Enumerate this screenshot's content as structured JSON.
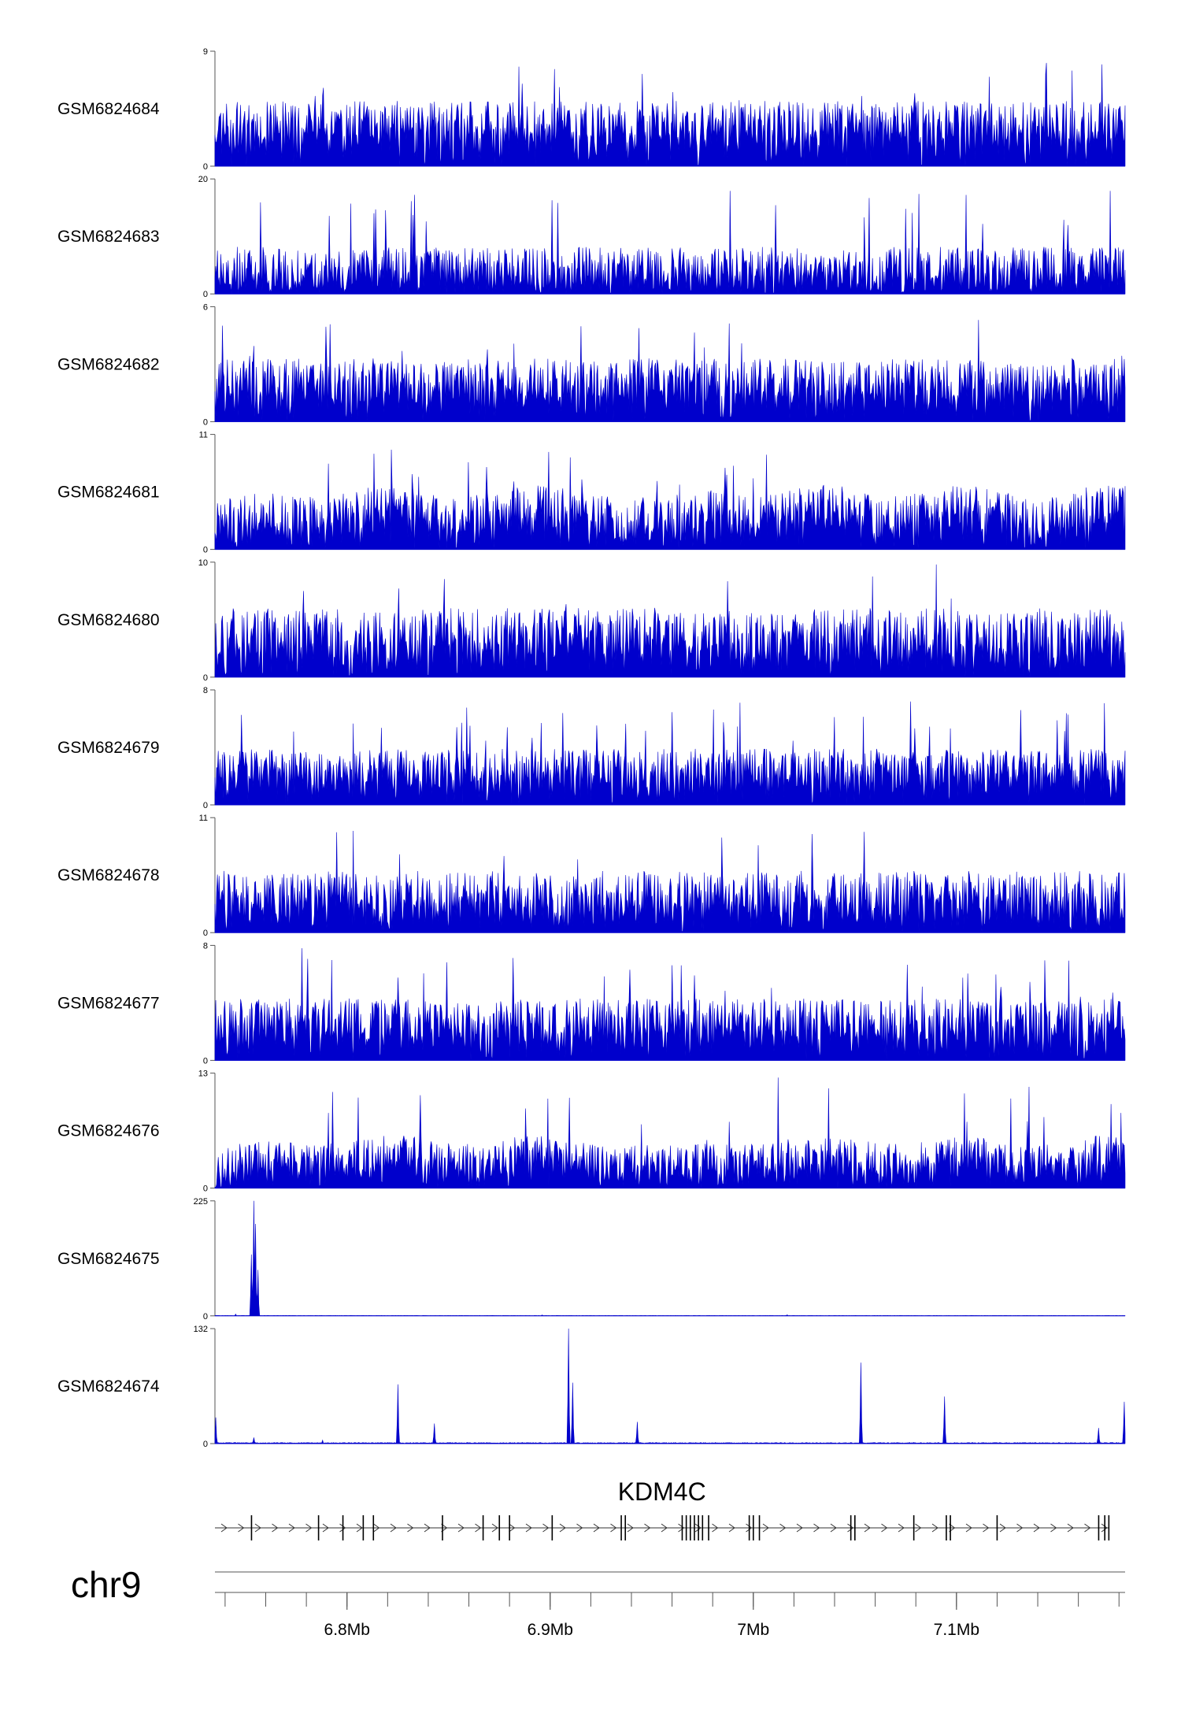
{
  "chart_data": {
    "type": "area",
    "chromosome": "chr9",
    "genomic_range_bp": [
      6735000,
      7183000
    ],
    "x_ticks": [
      {
        "pos": 6800000,
        "label": "6.8Mb"
      },
      {
        "pos": 6900000,
        "label": "6.9Mb"
      },
      {
        "pos": 7000000,
        "label": "7Mb"
      },
      {
        "pos": 7100000,
        "label": "7.1Mb"
      }
    ],
    "minor_tick_step_bp": 20000,
    "series_color": "#0000cc",
    "series": [
      {
        "name": "GSM6824684",
        "ymax": 9,
        "ymin": 0,
        "profile": "uniform",
        "baseline": 1.6,
        "level": 3.5,
        "spike_prob": 0.012,
        "seed": 11
      },
      {
        "name": "GSM6824683",
        "ymax": 20,
        "ymin": 0,
        "profile": "uniform",
        "baseline": 1.2,
        "level": 7,
        "spike_prob": 0.018,
        "seed": 23
      },
      {
        "name": "GSM6824682",
        "ymax": 6,
        "ymin": 0,
        "profile": "uniform",
        "baseline": 1.0,
        "level": 2.3,
        "spike_prob": 0.02,
        "seed": 37
      },
      {
        "name": "GSM6824681",
        "ymax": 11,
        "ymin": 0,
        "profile": "enriched",
        "baseline": 1.8,
        "level": 4.5,
        "spike_prob": 0.01,
        "peaks_bp": [
          [
            6791000,
            8.2
          ],
          [
            6832000,
            7.2
          ],
          [
            6882000,
            6.5
          ],
          [
            6910000,
            8.8
          ],
          [
            6986000,
            7.8
          ],
          [
            6990000,
            8.0
          ],
          [
            7000000,
            6.8
          ],
          [
            7110000,
            5.5
          ]
        ],
        "seed": 41
      },
      {
        "name": "GSM6824680",
        "ymax": 10,
        "ymin": 0,
        "profile": "uniform",
        "baseline": 1.5,
        "level": 4.5,
        "spike_prob": 0.012,
        "peaks_bp": [
          [
            7090000,
            9.8
          ]
        ],
        "seed": 53
      },
      {
        "name": "GSM6824679",
        "ymax": 8,
        "ymin": 0,
        "profile": "uniform",
        "baseline": 1.2,
        "level": 2.7,
        "spike_prob": 0.025,
        "seed": 61
      },
      {
        "name": "GSM6824678",
        "ymax": 11,
        "ymin": 0,
        "profile": "uniform",
        "baseline": 1.6,
        "level": 4.3,
        "spike_prob": 0.012,
        "peaks_bp": [
          [
            6795000,
            9.6
          ]
        ],
        "seed": 73
      },
      {
        "name": "GSM6824677",
        "ymax": 8,
        "ymin": 0,
        "profile": "uniform",
        "baseline": 1.3,
        "level": 3.0,
        "spike_prob": 0.015,
        "peaks_bp": [
          [
            6778000,
            7.8
          ]
        ],
        "seed": 89
      },
      {
        "name": "GSM6824676",
        "ymax": 13,
        "ymin": 0,
        "profile": "enriched",
        "baseline": 1.6,
        "level": 4.5,
        "spike_prob": 0.008,
        "peaks_bp": [
          [
            6791000,
            8.5
          ],
          [
            6836000,
            10.5
          ],
          [
            6888000,
            9.0
          ],
          [
            6988000,
            7.5
          ],
          [
            7012000,
            12.5
          ],
          [
            7105000,
            7.5
          ],
          [
            7176000,
            9.5
          ],
          [
            7181000,
            8.5
          ]
        ],
        "seed": 97
      },
      {
        "name": "GSM6824675",
        "ymax": 225,
        "ymin": 0,
        "profile": "sparse",
        "baseline": 0.6,
        "level": 1.2,
        "spike_prob": 0.003,
        "peaks_bp": [
          [
            6754000,
            225
          ],
          [
            6755000,
            180
          ],
          [
            6753000,
            120
          ],
          [
            6756000,
            90
          ]
        ],
        "seed": 101
      },
      {
        "name": "GSM6824674",
        "ymax": 132,
        "ymin": 0,
        "profile": "sparse",
        "baseline": 1.0,
        "level": 2.0,
        "spike_prob": 0.003,
        "peaks_bp": [
          [
            6735500,
            30
          ],
          [
            6754000,
            7
          ],
          [
            6825000,
            68
          ],
          [
            6843000,
            23
          ],
          [
            6909000,
            132
          ],
          [
            6911000,
            70
          ],
          [
            6943000,
            25
          ],
          [
            7053000,
            93
          ],
          [
            7094000,
            54
          ],
          [
            7170000,
            18
          ],
          [
            7182500,
            48
          ]
        ],
        "seed": 103
      }
    ],
    "gene": {
      "name": "KDM4C",
      "start_bp": 6735000,
      "end_bp": 7175000,
      "strand": "+",
      "exons_bp": [
        6753000,
        6786000,
        6798000,
        6808000,
        6813000,
        6847000,
        6867000,
        6875000,
        6880000,
        6901000,
        6935000,
        6937000,
        6965000,
        6967000,
        6969000,
        6971000,
        6973000,
        6975000,
        6978000,
        6998000,
        7000000,
        7003000,
        7048000,
        7050000,
        7079000,
        7095000,
        7097000,
        7120000,
        7170000,
        7173000,
        7175000
      ]
    }
  }
}
